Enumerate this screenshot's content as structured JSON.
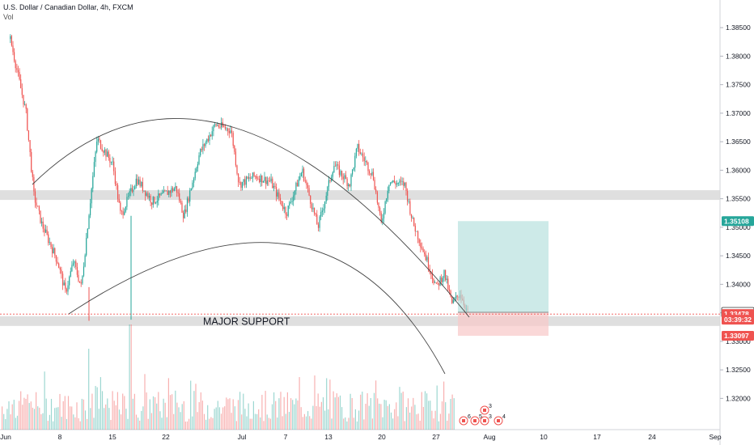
{
  "header": {
    "title": "U.S. Dollar / Canadian Dollar, 4h, FXCM",
    "volume_label": "Vol"
  },
  "chart_data": {
    "type": "candlestick",
    "symbol": "USDCAD",
    "timeframe": "4h",
    "source": "FXCM",
    "y_axis": {
      "ticks": [
        "1.38500",
        "1.38000",
        "1.37500",
        "1.37000",
        "1.36500",
        "1.36000",
        "1.35500",
        "1.35000",
        "1.34500",
        "1.34000",
        "1.33500",
        "1.33000",
        "1.32500",
        "1.32000"
      ],
      "range": [
        1.3175,
        1.388
      ]
    },
    "x_axis": {
      "ticks": [
        "Jun",
        "8",
        "15",
        "22",
        "Jul",
        "7",
        "13",
        "20",
        "27",
        "Aug",
        "10",
        "17",
        "24",
        "Sep"
      ]
    },
    "price_path": [
      {
        "date": "Jun 1",
        "price": 1.383
      },
      {
        "date": "Jun 3",
        "price": 1.37
      },
      {
        "date": "Jun 4",
        "price": 1.3555
      },
      {
        "date": "Jun 5",
        "price": 1.3505
      },
      {
        "date": "Jun 7",
        "price": 1.344
      },
      {
        "date": "Jun 8",
        "price": 1.3385
      },
      {
        "date": "Jun 9",
        "price": 1.344
      },
      {
        "date": "Jun 10",
        "price": 1.3395
      },
      {
        "date": "Jun 11",
        "price": 1.353
      },
      {
        "date": "Jun 12",
        "price": 1.3655
      },
      {
        "date": "Jun 14",
        "price": 1.361
      },
      {
        "date": "Jun 15",
        "price": 1.352
      },
      {
        "date": "Jun 17",
        "price": 1.3585
      },
      {
        "date": "Jun 19",
        "price": 1.3545
      },
      {
        "date": "Jun 22",
        "price": 1.357
      },
      {
        "date": "Jun 23",
        "price": 1.352
      },
      {
        "date": "Jun 25",
        "price": 1.363
      },
      {
        "date": "Jun 27",
        "price": 1.368
      },
      {
        "date": "Jun 29",
        "price": 1.367
      },
      {
        "date": "Jun 30",
        "price": 1.3575
      },
      {
        "date": "Jul 2",
        "price": 1.359
      },
      {
        "date": "Jul 4",
        "price": 1.358
      },
      {
        "date": "Jul 6",
        "price": 1.3525
      },
      {
        "date": "Jul 8",
        "price": 1.36
      },
      {
        "date": "Jul 10",
        "price": 1.35
      },
      {
        "date": "Jul 12",
        "price": 1.361
      },
      {
        "date": "Jul 14",
        "price": 1.3575
      },
      {
        "date": "Jul 15",
        "price": 1.364
      },
      {
        "date": "Jul 17",
        "price": 1.359
      },
      {
        "date": "Jul 18",
        "price": 1.3505
      },
      {
        "date": "Jul 19",
        "price": 1.358
      },
      {
        "date": "Jul 21",
        "price": 1.3575
      },
      {
        "date": "Jul 22",
        "price": 1.351
      },
      {
        "date": "Jul 24",
        "price": 1.3435
      },
      {
        "date": "Jul 25",
        "price": 1.3395
      },
      {
        "date": "Jul 26",
        "price": 1.342
      },
      {
        "date": "Jul 27",
        "price": 1.3365
      },
      {
        "date": "Jul 28",
        "price": 1.3385
      },
      {
        "date": "Jul 29",
        "price": 1.335
      }
    ],
    "support_zones": [
      {
        "label": "",
        "low": 1.355,
        "high": 1.3565
      },
      {
        "label": "MAJOR SUPPORT",
        "low": 1.333,
        "high": 1.3344
      }
    ],
    "position": {
      "entry": 1.33509,
      "target": 1.35108,
      "stop": 1.33097
    },
    "price_labels": [
      {
        "text": "1.35108",
        "price": 1.35108,
        "bg": "#26a69a",
        "fg": "#ffffff"
      },
      {
        "text": "1.33509",
        "price": 1.33509,
        "bg": "#ffffff",
        "fg": "#131722",
        "border": "#333333"
      },
      {
        "text": "1.33478",
        "price": 1.33478,
        "bg": "#ef5350",
        "fg": "#ffffff"
      },
      {
        "text": "03:39:32",
        "price": 1.3338,
        "bg": "#ef5350",
        "fg": "#ffffff"
      },
      {
        "text": "1.33097",
        "price": 1.33097,
        "bg": "#ef5350",
        "fg": "#ffffff"
      }
    ],
    "events": [
      {
        "count": "6"
      },
      {
        "count": "5"
      },
      {
        "count": "3"
      },
      {
        "count": "4"
      },
      {
        "count": "3"
      }
    ],
    "colors": {
      "up": "#26a69a",
      "down": "#ef5350",
      "zone": "#d9d9d9",
      "target_fill": "#b2dfdb",
      "stop_fill": "#f8c8c8",
      "arc": "#444444"
    }
  }
}
